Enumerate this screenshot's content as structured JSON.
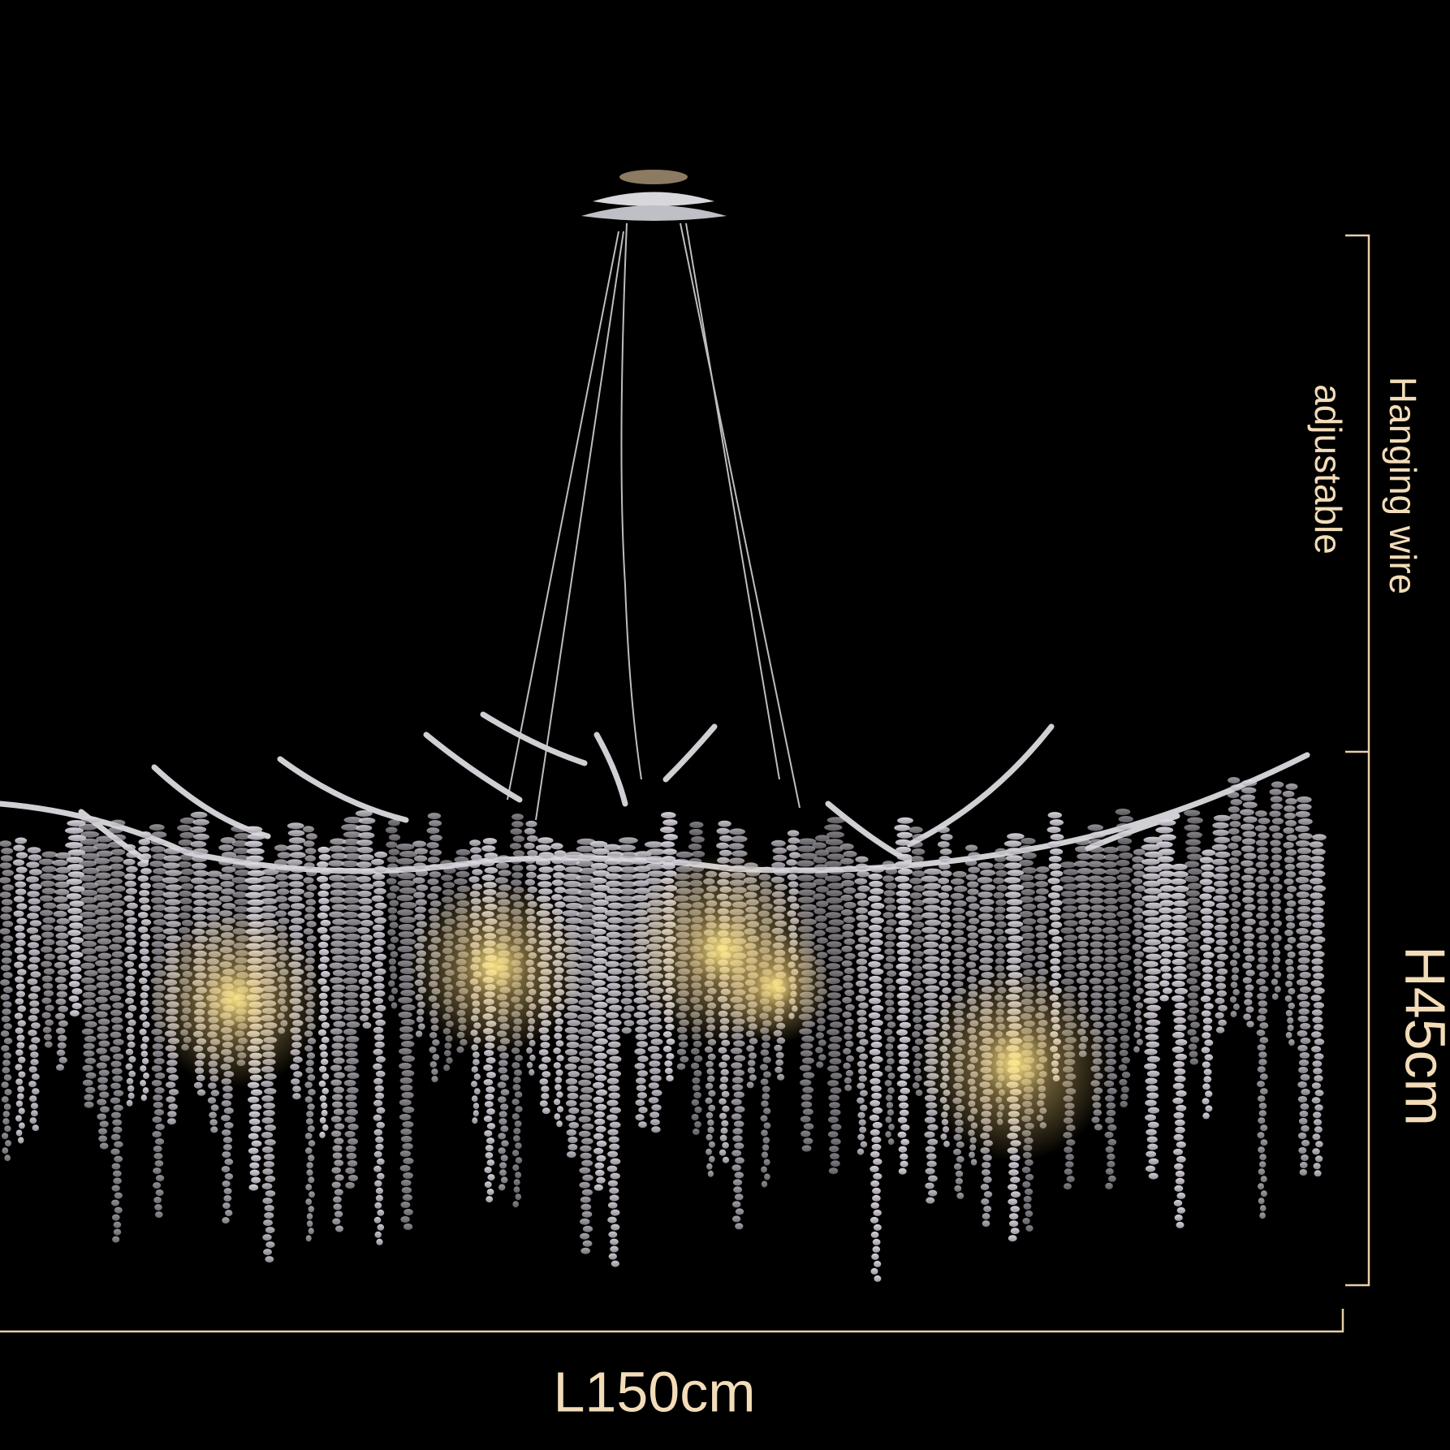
{
  "labels": {
    "wire_line1": "Hanging wire",
    "wire_line2": "adjustable",
    "height": "H45cm",
    "length": "L150cm"
  }
}
